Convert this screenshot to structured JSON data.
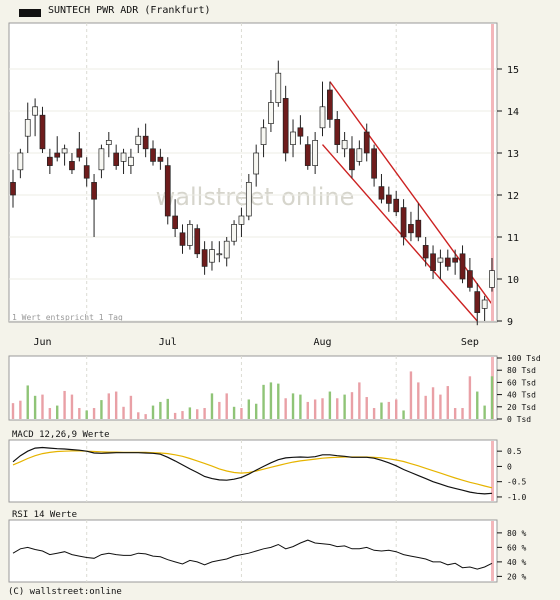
{
  "header": {
    "title": "SUNTECH PWR ADR (Frankfurt)"
  },
  "footer": {
    "copyright": "(C) wallstreet:online"
  },
  "watermark": "wallstreet online",
  "colors": {
    "up": "#f7f7f2",
    "down": "#6e1c1c",
    "trend": "#cc2222",
    "vol_up": "#8fc477",
    "vol_down": "#e9a0a6",
    "macd": "#111111",
    "signal": "#e6b400",
    "rsi": "#111111",
    "marker": "#f3b7bb"
  },
  "chart_data": [
    {
      "type": "candlestick",
      "note": "1 Wert entspricht 1 Tag",
      "ylim": [
        9,
        16
      ],
      "yticks": [
        "9",
        "10",
        "11",
        "12",
        "13",
        "14",
        "15"
      ],
      "xticks": [
        "Jun",
        "Jul",
        "Aug",
        "Sep"
      ],
      "ohlc": [
        [
          12.3,
          12.6,
          11.7,
          12.0
        ],
        [
          12.6,
          13.1,
          12.4,
          13.0
        ],
        [
          13.4,
          14.2,
          13.0,
          13.8
        ],
        [
          13.9,
          14.3,
          13.4,
          14.1
        ],
        [
          13.9,
          14.1,
          13.0,
          13.1
        ],
        [
          12.9,
          13.1,
          12.5,
          12.7
        ],
        [
          13.0,
          13.4,
          12.8,
          12.9
        ],
        [
          13.0,
          13.2,
          12.7,
          13.1
        ],
        [
          12.8,
          13.0,
          12.5,
          12.6
        ],
        [
          13.1,
          13.5,
          12.8,
          12.9
        ],
        [
          12.7,
          12.9,
          12.2,
          12.4
        ],
        [
          12.3,
          12.5,
          11.0,
          11.9
        ],
        [
          12.6,
          13.2,
          12.4,
          13.1
        ],
        [
          13.2,
          13.5,
          12.9,
          13.3
        ],
        [
          13.0,
          13.2,
          12.6,
          12.7
        ],
        [
          12.8,
          13.1,
          12.5,
          13.0
        ],
        [
          12.7,
          13.1,
          12.5,
          12.9
        ],
        [
          13.2,
          13.6,
          13.0,
          13.4
        ],
        [
          13.4,
          13.7,
          12.9,
          13.1
        ],
        [
          13.1,
          13.3,
          12.7,
          12.8
        ],
        [
          12.9,
          13.1,
          12.6,
          12.8
        ],
        [
          12.7,
          12.9,
          11.3,
          11.5
        ],
        [
          11.5,
          11.9,
          11.0,
          11.2
        ],
        [
          11.1,
          11.3,
          10.6,
          10.8
        ],
        [
          10.8,
          11.4,
          10.7,
          11.3
        ],
        [
          11.2,
          11.3,
          10.5,
          10.6
        ],
        [
          10.7,
          10.9,
          10.1,
          10.3
        ],
        [
          10.4,
          10.9,
          10.2,
          10.7
        ],
        [
          10.6,
          10.9,
          10.4,
          10.6
        ],
        [
          10.5,
          11.0,
          10.3,
          10.9
        ],
        [
          10.9,
          11.4,
          10.8,
          11.3
        ],
        [
          11.3,
          11.7,
          11.0,
          11.5
        ],
        [
          11.5,
          12.5,
          11.4,
          12.3
        ],
        [
          12.5,
          13.2,
          12.2,
          13.0
        ],
        [
          13.2,
          13.8,
          12.9,
          13.6
        ],
        [
          13.7,
          14.5,
          13.5,
          14.2
        ],
        [
          14.2,
          15.2,
          14.1,
          14.9
        ],
        [
          14.3,
          14.6,
          12.8,
          13.0
        ],
        [
          13.2,
          13.8,
          12.9,
          13.5
        ],
        [
          13.6,
          13.9,
          13.2,
          13.4
        ],
        [
          13.2,
          13.4,
          12.6,
          12.7
        ],
        [
          12.7,
          13.5,
          12.5,
          13.3
        ],
        [
          13.6,
          14.7,
          13.4,
          14.1
        ],
        [
          14.5,
          14.7,
          13.6,
          13.8
        ],
        [
          13.8,
          14.0,
          13.0,
          13.2
        ],
        [
          13.1,
          13.5,
          12.9,
          13.3
        ],
        [
          13.1,
          13.4,
          12.4,
          12.6
        ],
        [
          12.8,
          13.3,
          12.7,
          13.1
        ],
        [
          13.5,
          13.7,
          12.8,
          13.0
        ],
        [
          13.1,
          13.2,
          12.2,
          12.4
        ],
        [
          12.2,
          12.5,
          11.8,
          11.9
        ],
        [
          12.0,
          12.2,
          11.6,
          11.8
        ],
        [
          11.9,
          12.1,
          11.5,
          11.6
        ],
        [
          11.7,
          11.9,
          10.8,
          11.0
        ],
        [
          11.3,
          11.6,
          10.9,
          11.1
        ],
        [
          11.4,
          11.8,
          10.9,
          11.0
        ],
        [
          10.8,
          11.0,
          10.3,
          10.5
        ],
        [
          10.6,
          10.8,
          10.0,
          10.2
        ],
        [
          10.4,
          10.7,
          10.0,
          10.5
        ],
        [
          10.5,
          10.7,
          10.2,
          10.3
        ],
        [
          10.5,
          10.7,
          10.1,
          10.4
        ],
        [
          10.6,
          10.8,
          9.9,
          10.0
        ],
        [
          10.2,
          10.5,
          9.7,
          9.8
        ],
        [
          9.7,
          9.9,
          8.9,
          9.2
        ],
        [
          9.3,
          9.6,
          9.0,
          9.5
        ],
        [
          9.8,
          10.5,
          9.7,
          10.2
        ]
      ]
    },
    {
      "type": "bar",
      "name": "volume",
      "yticks": [
        "0 Tsd",
        "20 Tsd",
        "40 Tsd",
        "60 Tsd",
        "80 Tsd",
        "100 Tsd"
      ],
      "ylim": [
        0,
        100
      ],
      "values": [
        26,
        30,
        55,
        38,
        40,
        18,
        22,
        46,
        40,
        18,
        14,
        18,
        31,
        42,
        45,
        20,
        38,
        11,
        8,
        22,
        28,
        33,
        10,
        13,
        19,
        16,
        18,
        42,
        28,
        42,
        20,
        18,
        32,
        25,
        56,
        60,
        58,
        34,
        42,
        40,
        28,
        32,
        34,
        45,
        34,
        40,
        44,
        60,
        36,
        18,
        27,
        28,
        32,
        14,
        78,
        60,
        38,
        52,
        40,
        54,
        18,
        18,
        70,
        45,
        22,
        70
      ],
      "up": [
        0,
        0,
        1,
        1,
        0,
        0,
        1,
        0,
        0,
        0,
        1,
        0,
        1,
        0,
        0,
        0,
        0,
        0,
        0,
        1,
        1,
        1,
        0,
        0,
        1,
        0,
        0,
        1,
        0,
        0,
        1,
        0,
        1,
        1,
        1,
        1,
        1,
        0,
        1,
        1,
        0,
        0,
        0,
        1,
        0,
        1,
        0,
        0,
        0,
        0,
        1,
        0,
        0,
        1,
        0,
        0,
        0,
        0,
        0,
        0,
        0,
        0,
        0,
        1,
        1,
        1
      ]
    },
    {
      "type": "line",
      "name": "macd",
      "label": "MACD 12,26,9 Werte",
      "yticks": [
        "0.5",
        "0",
        "-0.5",
        "-1.0"
      ],
      "ylim": [
        -1.1,
        0.8
      ],
      "series": [
        {
          "values": [
            0.15,
            0.35,
            0.5,
            0.6,
            0.62,
            0.6,
            0.58,
            0.57,
            0.55,
            0.53,
            0.5,
            0.44,
            0.43,
            0.44,
            0.45,
            0.45,
            0.45,
            0.45,
            0.44,
            0.43,
            0.4,
            0.3,
            0.18,
            0.05,
            -0.08,
            -0.2,
            -0.33,
            -0.4,
            -0.44,
            -0.45,
            -0.42,
            -0.36,
            -0.25,
            -0.12,
            0.0,
            0.12,
            0.22,
            0.28,
            0.3,
            0.31,
            0.3,
            0.32,
            0.38,
            0.38,
            0.35,
            0.33,
            0.3,
            0.3,
            0.3,
            0.27,
            0.2,
            0.12,
            0.02,
            -0.1,
            -0.2,
            -0.3,
            -0.4,
            -0.5,
            -0.58,
            -0.66,
            -0.72,
            -0.78,
            -0.84,
            -0.88,
            -0.9,
            -0.88
          ]
        },
        {
          "values": [
            0.05,
            0.15,
            0.26,
            0.35,
            0.42,
            0.46,
            0.49,
            0.5,
            0.51,
            0.51,
            0.5,
            0.49,
            0.48,
            0.47,
            0.47,
            0.46,
            0.46,
            0.46,
            0.46,
            0.45,
            0.44,
            0.42,
            0.38,
            0.33,
            0.26,
            0.18,
            0.1,
            0.01,
            -0.08,
            -0.15,
            -0.2,
            -0.22,
            -0.2,
            -0.15,
            -0.09,
            -0.03,
            0.03,
            0.09,
            0.14,
            0.18,
            0.21,
            0.24,
            0.27,
            0.29,
            0.3,
            0.31,
            0.31,
            0.31,
            0.31,
            0.3,
            0.28,
            0.25,
            0.21,
            0.16,
            0.09,
            0.02,
            -0.06,
            -0.14,
            -0.22,
            -0.3,
            -0.38,
            -0.45,
            -0.52,
            -0.58,
            -0.64,
            -0.7
          ]
        }
      ]
    },
    {
      "type": "line",
      "name": "rsi",
      "label": "RSI 14 Werte",
      "yticks": [
        "80 %",
        "60 %",
        "40 %",
        "20 %"
      ],
      "ylim": [
        15,
        95
      ],
      "values": [
        52,
        58,
        60,
        57,
        55,
        50,
        52,
        54,
        50,
        48,
        46,
        45,
        50,
        52,
        50,
        49,
        49,
        52,
        51,
        48,
        47,
        43,
        40,
        37,
        42,
        40,
        36,
        40,
        42,
        44,
        48,
        50,
        52,
        55,
        58,
        60,
        64,
        58,
        61,
        66,
        70,
        66,
        65,
        64,
        61,
        62,
        58,
        58,
        60,
        56,
        55,
        56,
        54,
        50,
        48,
        46,
        44,
        40,
        40,
        36,
        38,
        32,
        33,
        30,
        33,
        38
      ]
    }
  ]
}
